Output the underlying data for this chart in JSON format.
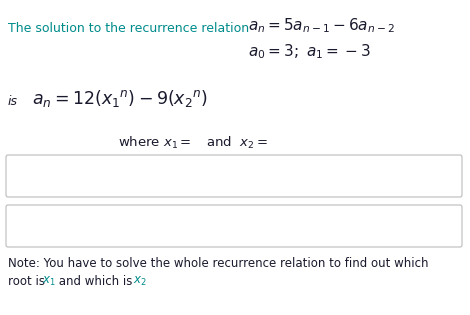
{
  "bg_color": "#ffffff",
  "teal_color": "#008B8B",
  "black_color": "#1a1a2e",
  "note_color": "#1a1a2e",
  "fig_width": 4.7,
  "fig_height": 3.15,
  "dpi": 100,
  "teal_text": "The solution to the recurrence relation",
  "recurrence1": "$a_n=5a_{n-1}-6a_{n-2}$",
  "recurrence2": "$a_0=3;\\ a_1=-3$",
  "is_text": "is",
  "solution": "$a_n=12(x_1{}^n)-9(x_2{}^n)$",
  "where_line": "where $x_1=$   and  $x_2=$",
  "note1": "Note: You have to solve the whole recurrence​relation to find out which",
  "note2_pre": "root is ",
  "note2_x1": "$x_1$",
  "note2_mid": " and which is ",
  "note2_x2": "$x_2$"
}
